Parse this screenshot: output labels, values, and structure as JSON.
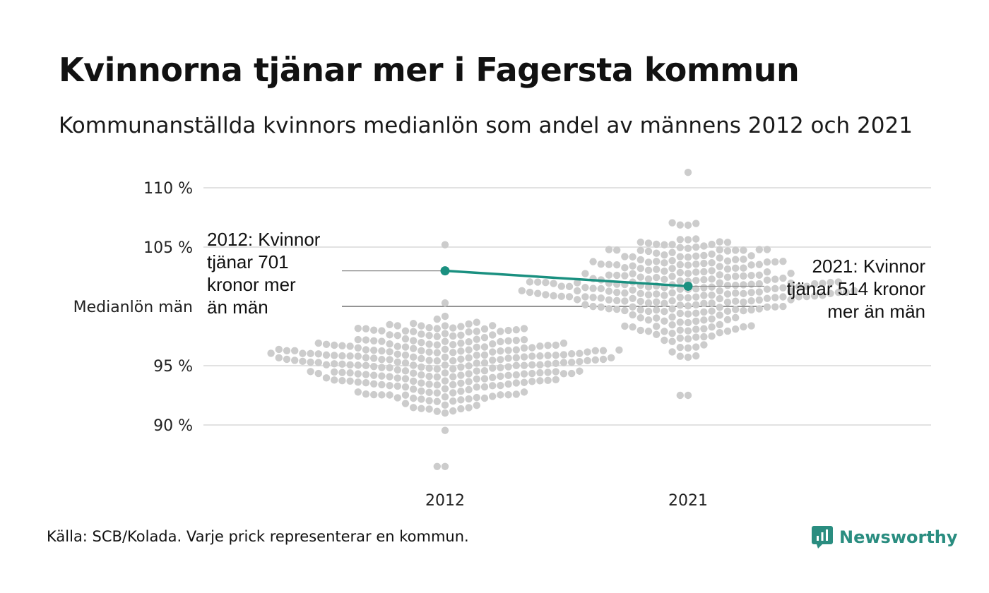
{
  "header": {
    "title": "Kvinnorna tjänar mer i Fagersta kommun",
    "subtitle": "Kommunanställda kvinnors medianlön som andel av männens 2012 och 2021"
  },
  "footer": {
    "source": "Källa: SCB/Kolada. Varje prick representerar en kommun.",
    "brand": "Newsworthy"
  },
  "colors": {
    "dots": "#cccccc",
    "highlight": "#1a9080",
    "grid": "#e2e2e2",
    "reference": "#555555",
    "brand": "#2a8d80"
  },
  "icons": {
    "brand_logo": "newsworthy-logo-icon"
  },
  "chart_data": {
    "type": "scatter",
    "subtype": "beeswarm",
    "categories": [
      "2012",
      "2021"
    ],
    "ylim": [
      86,
      111.5
    ],
    "y_ticks": [
      {
        "value": 90,
        "label": "90 %"
      },
      {
        "value": 95,
        "label": "95 %"
      },
      {
        "value": 100,
        "label": "Medianlön män"
      },
      {
        "value": 105,
        "label": "105 %"
      },
      {
        "value": 110,
        "label": "110 %"
      }
    ],
    "reference_line": 100,
    "grid": true,
    "distribution": {
      "2012": {
        "count": 290,
        "center": 95.2,
        "sd": 2.2,
        "min": 86.5,
        "max": 105.2
      },
      "2021": {
        "count": 290,
        "center": 101.5,
        "sd": 2.3,
        "min": 92.5,
        "max": 111.3
      }
    },
    "highlight": {
      "name": "Fagersta",
      "points": [
        {
          "category": "2012",
          "value": 103.0
        },
        {
          "category": "2021",
          "value": 101.7
        }
      ]
    },
    "annotations": [
      {
        "category": "2012",
        "lines": [
          "2012: Kvinnor",
          "tjänar 701",
          "kronor mer",
          "än män"
        ]
      },
      {
        "category": "2021",
        "lines": [
          "2021: Kvinnor",
          "tjänar 514 kronor",
          "mer än män"
        ]
      }
    ]
  }
}
